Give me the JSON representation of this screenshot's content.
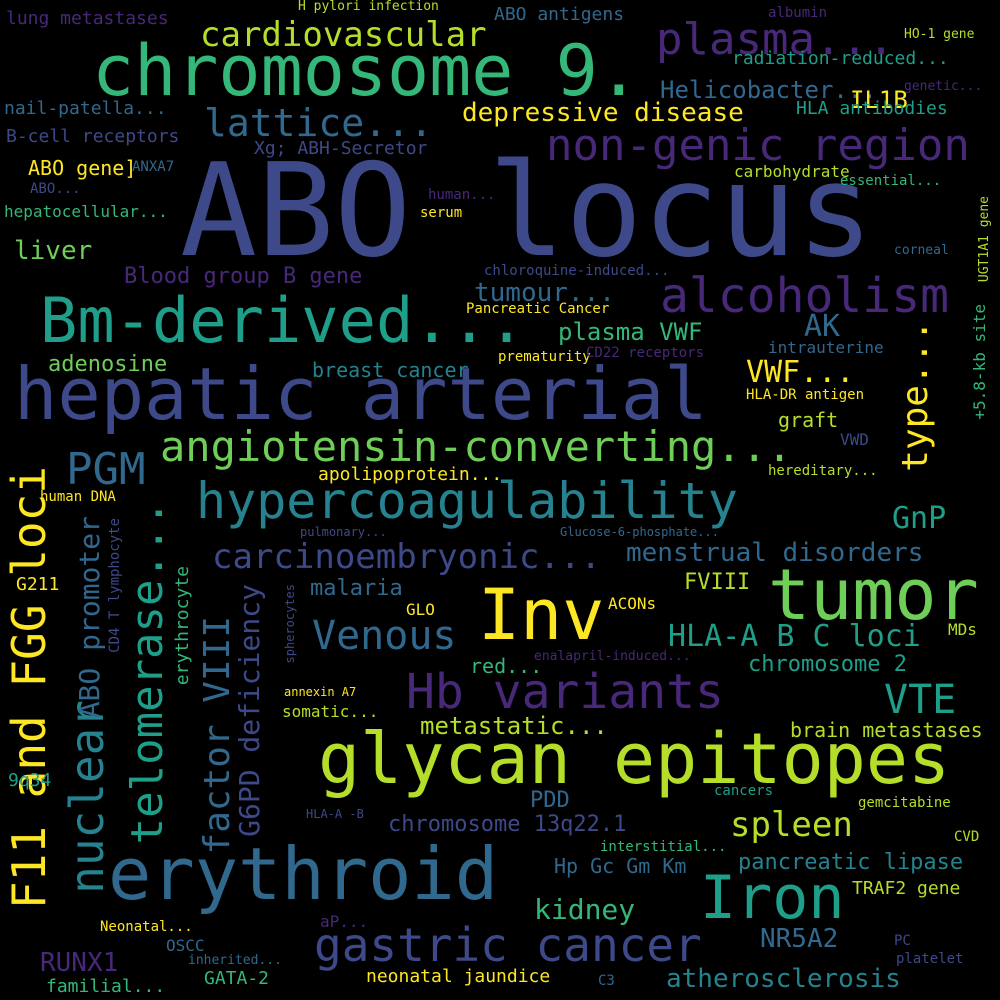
{
  "colors": {
    "background": "#000000",
    "yellow": "#fde725",
    "lime": "#b5de2b",
    "green": "#6ece58",
    "seagreen": "#35b779",
    "teal": "#1f9e89",
    "cyan": "#26828e",
    "blue": "#31688e",
    "indigo": "#3e4989",
    "violet": "#482878",
    "purple": "#440154"
  },
  "words": [
    "ABO locus",
    "chromosome 9.",
    "hepatic arterial",
    "glycan epitopes",
    "erythroid",
    "Bm-derived...",
    "tumor",
    "Inv",
    "hypercoagulability",
    "Iron",
    "Hb variants",
    "angiotensin-converting...",
    "alcoholism",
    "non-genic region",
    "plasma...",
    "F11 and FGG loci",
    "nuclear",
    "telomerase...",
    "gastric cancer",
    "carcinoembryonic...",
    "lattice...",
    "cardiovascular",
    "Venous",
    "PGM",
    "VTE",
    "factor VIII",
    "ABO promoter",
    "HLA-A B C loci",
    "G6PD deficiency",
    "spleen",
    "type...",
    "depressive disease",
    "menstrual disorders",
    "Helicobacter...",
    "tumour...",
    "AK",
    "VWF...",
    "GnP",
    "breast cancer",
    "adenosine",
    "Blood group B gene",
    "liver",
    "plasma VWF",
    "kidney",
    "metastatic...",
    "chromosome 13q22.1",
    "atherosclerosis",
    "NR5A2",
    "RUNX1",
    "chromosome 2",
    "IL1B",
    "radiation-reduced...",
    "HLA antibodies",
    "ABO gene]",
    "malaria",
    "brain metastases",
    "pancreatic lipase",
    "Hp Gc Gm Km",
    "PDD",
    "lung metastases",
    "ABO antigens",
    "nail-patella...",
    "B-cell receptors",
    "Xg; ABH-Secretor",
    "ANXA7",
    "hepatocellular...",
    "carbohydrate",
    "essential...",
    "serum",
    "human...",
    "chloroquine-induced...",
    "Pancreatic Cancer",
    "prematurity",
    "CD22 receptors",
    "intrauterine",
    "HLA-DR antigen",
    "graft",
    "VWD",
    "hereditary...",
    "apolipoprotein...",
    "human DNA",
    "pulmonary...",
    "Glucose-6-phosphate...",
    "erythrocyte",
    "CD4 T lymphocyte",
    "spherocytes",
    "G211",
    "GLO",
    "ACONs",
    "FVIII",
    "red...",
    "enalapril-induced...",
    "MDs",
    "annexin A7",
    "somatic...",
    "9q34",
    "cancers",
    "gemcitabine",
    "HLA-A -B",
    "interstitial...",
    "CVD",
    "TRAF2 gene",
    "Neonatal...",
    "aP...",
    "OSCC",
    "inherited...",
    "neonatal jaundice",
    "GATA-2",
    "familial...",
    "C3",
    "PC",
    "platelet",
    "H pylori infection",
    "albumin",
    "HO-1 gene",
    "genetic...",
    "ABO...",
    "corneal",
    "UGT1A1 gene",
    "+5.8-kb site"
  ]
}
